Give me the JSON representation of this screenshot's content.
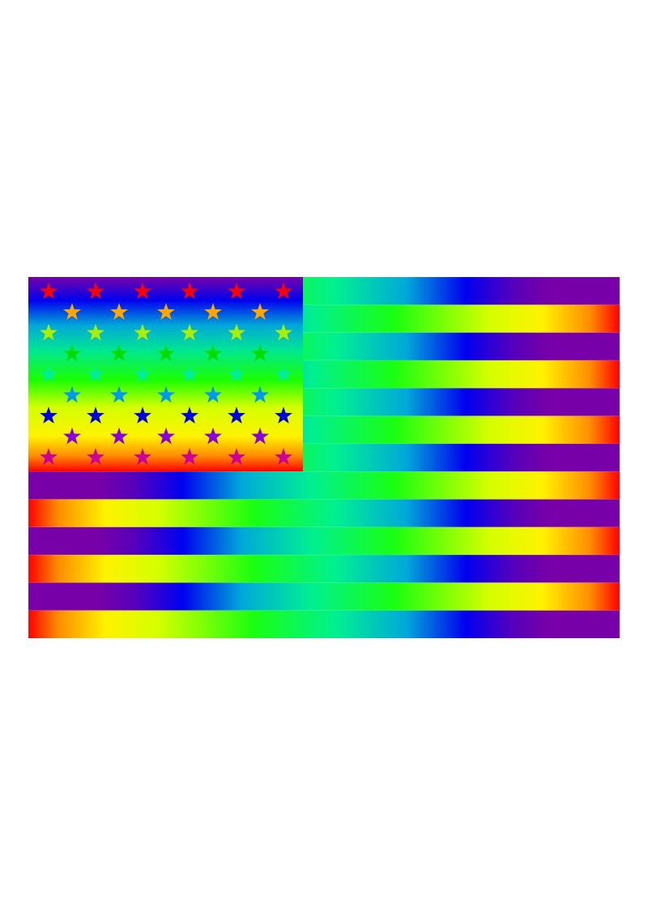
{
  "flag": {
    "stripe_count": 13,
    "canton_stripes": 7,
    "star_rows": [
      6,
      5,
      6,
      5,
      6,
      5,
      6,
      5,
      6
    ],
    "star_row_colors": [
      "#ff0000",
      "#ffa500",
      "#aaee00",
      "#00dd00",
      "#00ee99",
      "#0099ee",
      "#0000dd",
      "#8800dd",
      "#cc0099"
    ],
    "stripe_gradient_colors": [
      "#ff0000",
      "#ff8c00",
      "#fff200",
      "#d4ff00",
      "#1aff10",
      "#00f090",
      "#00a8d8",
      "#0000ee",
      "#5500bb",
      "#7700a8"
    ],
    "canton_gradient_colors": [
      "#7700a8",
      "#0000ee",
      "#00a8d8",
      "#00e890",
      "#1aff00",
      "#d4ff00",
      "#fff200",
      "#ff8c00",
      "#ff0000"
    ],
    "odd_stripe_direction": "red-to-purple",
    "even_stripe_direction": "purple-to-red"
  }
}
